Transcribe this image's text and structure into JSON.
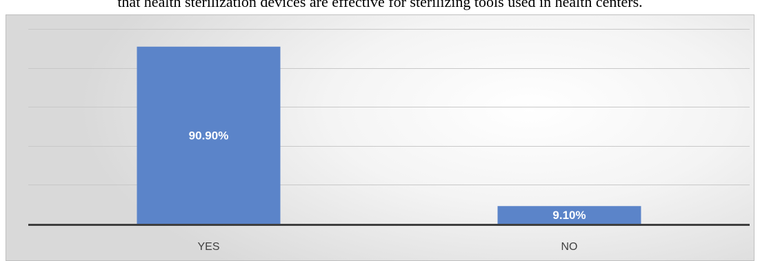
{
  "caption": "that health sterilization devices are effective for sterilizing tools used in health centers.",
  "chart_data": {
    "type": "bar",
    "categories": [
      "YES",
      "NO"
    ],
    "values": [
      90.9,
      9.1
    ],
    "data_labels": [
      "90.90%",
      "9.10%"
    ],
    "ylim": [
      0,
      100
    ],
    "grid": true,
    "bar_color": "#5b84c9"
  }
}
